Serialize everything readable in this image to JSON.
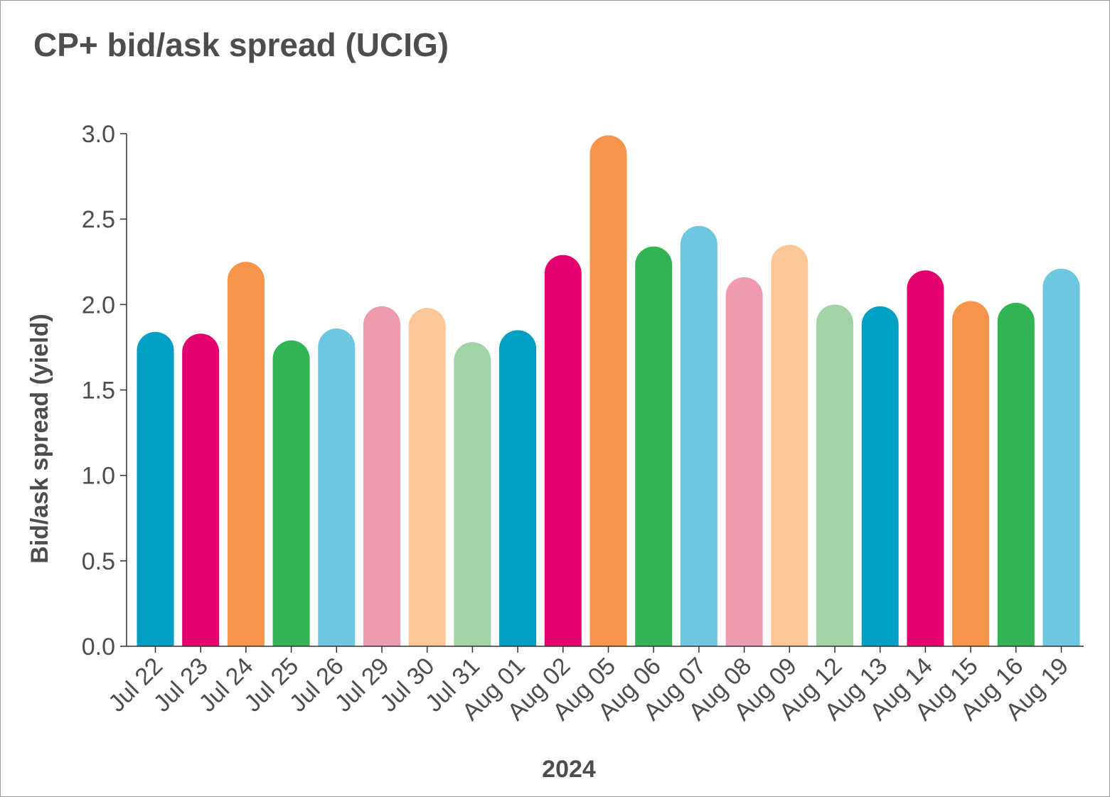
{
  "chart_data": {
    "type": "bar",
    "title": "CP+ bid/ask spread (UCIG)",
    "xlabel": "2024",
    "ylabel": "Bid/ask spread (yield)",
    "ylim": [
      0,
      3.0
    ],
    "yticks": [
      "0.0",
      "0.5",
      "1.0",
      "1.5",
      "2.0",
      "2.5",
      "3.0"
    ],
    "grid": false,
    "legend": "none",
    "categories": [
      "Jul 22",
      "Jul 23",
      "Jul 24",
      "Jul 25",
      "Jul 26",
      "Jul 29",
      "Jul 30",
      "Jul 31",
      "Aug 01",
      "Aug 02",
      "Aug 05",
      "Aug 06",
      "Aug 07",
      "Aug 08",
      "Aug 09",
      "Aug 12",
      "Aug 13",
      "Aug 14",
      "Aug 15",
      "Aug 16",
      "Aug 19"
    ],
    "values": [
      1.84,
      1.83,
      2.25,
      1.79,
      1.86,
      1.99,
      1.98,
      1.78,
      1.85,
      2.29,
      2.99,
      2.34,
      2.46,
      2.16,
      2.35,
      2.0,
      1.99,
      2.2,
      2.02,
      2.01,
      2.21
    ],
    "colors": [
      "#009fc3",
      "#e5006f",
      "#f7944a",
      "#30b454",
      "#6ec6df",
      "#f09ab0",
      "#fbc79a",
      "#a2d3a6",
      "#009fc3",
      "#e5006f",
      "#f7944a",
      "#30b454",
      "#6ec6df",
      "#f09ab0",
      "#fbc79a",
      "#a2d3a6",
      "#009fc3",
      "#e5006f",
      "#f7944a",
      "#30b454",
      "#6ec6df"
    ]
  }
}
